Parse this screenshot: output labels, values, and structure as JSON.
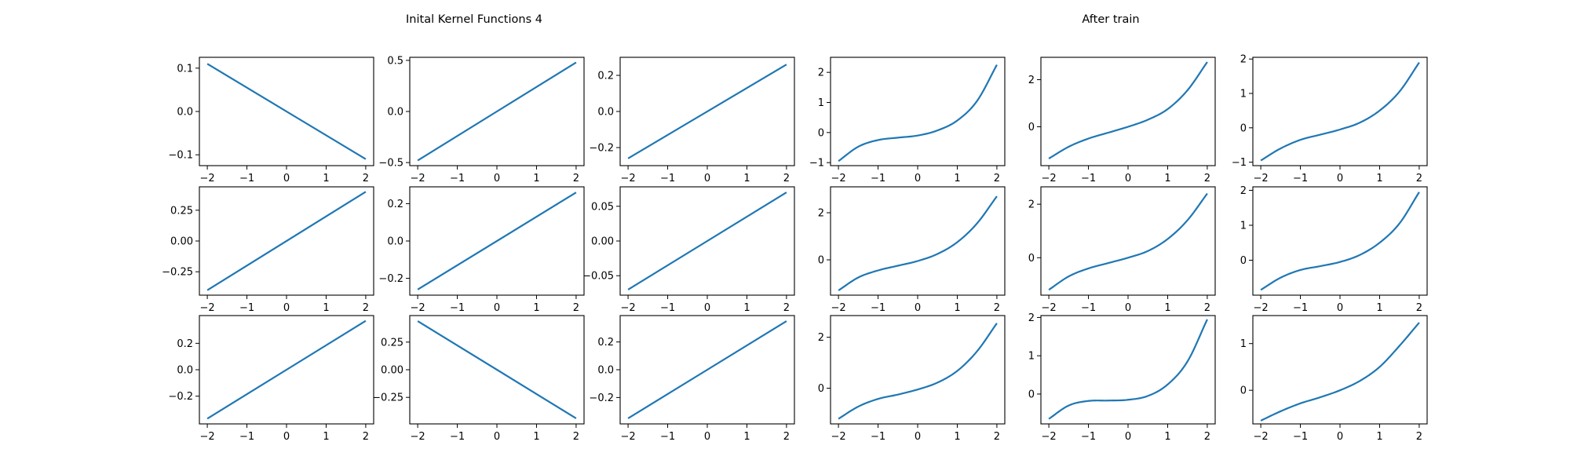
{
  "figure": {
    "titles": [
      {
        "text": "Inital Kernel Functions 4"
      },
      {
        "text": "After train"
      }
    ]
  },
  "chart_data": [
    {
      "type": "line",
      "row": 0,
      "col": 0,
      "x": [
        -2,
        2
      ],
      "series": [
        {
          "values": [
            0.11,
            -0.11
          ]
        }
      ],
      "xlim": [
        -2.2,
        2.2
      ],
      "ylim": [
        -0.125,
        0.125
      ],
      "xticks": [
        -2,
        -1,
        0,
        1,
        2
      ],
      "yticks": [
        -0.1,
        0.0,
        0.1
      ],
      "xtick_labels": [
        "−2",
        "−1",
        "0",
        "1",
        "2"
      ],
      "ytick_labels": [
        "−0.1",
        "0.0",
        "0.1"
      ]
    },
    {
      "type": "line",
      "row": 0,
      "col": 1,
      "x": [
        -2,
        2
      ],
      "series": [
        {
          "values": [
            -0.48,
            0.48
          ]
        }
      ],
      "xlim": [
        -2.2,
        2.2
      ],
      "ylim": [
        -0.53,
        0.53
      ],
      "xticks": [
        -2,
        -1,
        0,
        1,
        2
      ],
      "yticks": [
        -0.5,
        0.0,
        0.5
      ],
      "xtick_labels": [
        "−2",
        "−1",
        "0",
        "1",
        "2"
      ],
      "ytick_labels": [
        "−0.5",
        "0.0",
        "0.5"
      ]
    },
    {
      "type": "line",
      "row": 0,
      "col": 2,
      "x": [
        -2,
        2
      ],
      "series": [
        {
          "values": [
            -0.26,
            0.26
          ]
        }
      ],
      "xlim": [
        -2.2,
        2.2
      ],
      "ylim": [
        -0.3,
        0.3
      ],
      "xticks": [
        -2,
        -1,
        0,
        1,
        2
      ],
      "yticks": [
        -0.2,
        0.0,
        0.2
      ],
      "xtick_labels": [
        "−2",
        "−1",
        "0",
        "1",
        "2"
      ],
      "ytick_labels": [
        "−0.2",
        "0.0",
        "0.2"
      ]
    },
    {
      "type": "line",
      "row": 0,
      "col": 3,
      "x": [
        -2,
        -1.5,
        -1,
        -0.5,
        0,
        0.5,
        1,
        1.5,
        2
      ],
      "series": [
        {
          "values": [
            -0.95,
            -0.47,
            -0.25,
            -0.17,
            -0.1,
            0.07,
            0.4,
            1.05,
            2.25
          ]
        }
      ],
      "xlim": [
        -2.2,
        2.2
      ],
      "ylim": [
        -1.1,
        2.5
      ],
      "xticks": [
        -2,
        -1,
        0,
        1,
        2
      ],
      "yticks": [
        -1,
        0,
        1,
        2
      ],
      "xtick_labels": [
        "−2",
        "−1",
        "0",
        "1",
        "2"
      ],
      "ytick_labels": [
        "−1",
        "0",
        "1",
        "2"
      ]
    },
    {
      "type": "line",
      "row": 0,
      "col": 4,
      "x": [
        -2,
        -1.5,
        -1,
        -0.5,
        0,
        0.5,
        1,
        1.5,
        2
      ],
      "series": [
        {
          "values": [
            -1.35,
            -0.85,
            -0.5,
            -0.25,
            0,
            0.3,
            0.75,
            1.55,
            2.75
          ]
        }
      ],
      "xlim": [
        -2.2,
        2.2
      ],
      "ylim": [
        -1.65,
        2.95
      ],
      "xticks": [
        -2,
        -1,
        0,
        1,
        2
      ],
      "yticks": [
        0,
        2
      ],
      "xtick_labels": [
        "−2",
        "−1",
        "0",
        "1",
        "2"
      ],
      "ytick_labels": [
        "0",
        "2"
      ]
    },
    {
      "type": "line",
      "row": 0,
      "col": 5,
      "x": [
        -2,
        -1.5,
        -1,
        -0.5,
        0,
        0.5,
        1,
        1.5,
        2
      ],
      "series": [
        {
          "values": [
            -0.95,
            -0.6,
            -0.35,
            -0.2,
            -0.05,
            0.15,
            0.5,
            1.05,
            1.9
          ]
        }
      ],
      "xlim": [
        -2.2,
        2.2
      ],
      "ylim": [
        -1.1,
        2.05
      ],
      "xticks": [
        -2,
        -1,
        0,
        1,
        2
      ],
      "yticks": [
        -1,
        0,
        1,
        2
      ],
      "xtick_labels": [
        "−2",
        "−1",
        "0",
        "1",
        "2"
      ],
      "ytick_labels": [
        "−1",
        "0",
        "1",
        "2"
      ]
    },
    {
      "type": "line",
      "row": 1,
      "col": 0,
      "x": [
        -2,
        2
      ],
      "series": [
        {
          "values": [
            -0.4,
            0.4
          ]
        }
      ],
      "xlim": [
        -2.2,
        2.2
      ],
      "ylim": [
        -0.44,
        0.44
      ],
      "xticks": [
        -2,
        -1,
        0,
        1,
        2
      ],
      "yticks": [
        -0.25,
        0.0,
        0.25
      ],
      "xtick_labels": [
        "−2",
        "−1",
        "0",
        "1",
        "2"
      ],
      "ytick_labels": [
        "−0.25",
        "0.00",
        "0.25"
      ]
    },
    {
      "type": "line",
      "row": 1,
      "col": 1,
      "x": [
        -2,
        2
      ],
      "series": [
        {
          "values": [
            -0.26,
            0.26
          ]
        }
      ],
      "xlim": [
        -2.2,
        2.2
      ],
      "ylim": [
        -0.29,
        0.29
      ],
      "xticks": [
        -2,
        -1,
        0,
        1,
        2
      ],
      "yticks": [
        -0.2,
        0.0,
        0.2
      ],
      "xtick_labels": [
        "−2",
        "−1",
        "0",
        "1",
        "2"
      ],
      "ytick_labels": [
        "−0.2",
        "0.0",
        "0.2"
      ]
    },
    {
      "type": "line",
      "row": 1,
      "col": 2,
      "x": [
        -2,
        2
      ],
      "series": [
        {
          "values": [
            -0.07,
            0.07
          ]
        }
      ],
      "xlim": [
        -2.2,
        2.2
      ],
      "ylim": [
        -0.078,
        0.078
      ],
      "xticks": [
        -2,
        -1,
        0,
        1,
        2
      ],
      "yticks": [
        -0.05,
        0.0,
        0.05
      ],
      "xtick_labels": [
        "−2",
        "−1",
        "0",
        "1",
        "2"
      ],
      "ytick_labels": [
        "−0.05",
        "0.00",
        "0.05"
      ]
    },
    {
      "type": "line",
      "row": 1,
      "col": 3,
      "x": [
        -2,
        -1.5,
        -1,
        -0.5,
        0,
        0.5,
        1,
        1.5,
        2
      ],
      "series": [
        {
          "values": [
            -1.3,
            -0.75,
            -0.45,
            -0.25,
            -0.05,
            0.25,
            0.75,
            1.55,
            2.7
          ]
        }
      ],
      "xlim": [
        -2.2,
        2.2
      ],
      "ylim": [
        -1.5,
        3.1
      ],
      "xticks": [
        -2,
        -1,
        0,
        1,
        2
      ],
      "yticks": [
        0,
        2
      ],
      "xtick_labels": [
        "−2",
        "−1",
        "0",
        "1",
        "2"
      ],
      "ytick_labels": [
        "0",
        "2"
      ]
    },
    {
      "type": "line",
      "row": 1,
      "col": 4,
      "x": [
        -2,
        -1.5,
        -1,
        -0.5,
        0,
        0.5,
        1,
        1.5,
        2
      ],
      "series": [
        {
          "values": [
            -1.2,
            -0.7,
            -0.4,
            -0.2,
            0,
            0.25,
            0.7,
            1.4,
            2.4
          ]
        }
      ],
      "xlim": [
        -2.2,
        2.2
      ],
      "ylim": [
        -1.4,
        2.65
      ],
      "xticks": [
        -2,
        -1,
        0,
        1,
        2
      ],
      "yticks": [
        0,
        2
      ],
      "xtick_labels": [
        "−2",
        "−1",
        "0",
        "1",
        "2"
      ],
      "ytick_labels": [
        "0",
        "2"
      ]
    },
    {
      "type": "line",
      "row": 1,
      "col": 5,
      "x": [
        -2,
        -1.5,
        -1,
        -0.5,
        0,
        0.5,
        1,
        1.5,
        2
      ],
      "series": [
        {
          "values": [
            -0.85,
            -0.5,
            -0.28,
            -0.17,
            -0.05,
            0.15,
            0.5,
            1.05,
            1.95
          ]
        }
      ],
      "xlim": [
        -2.2,
        2.2
      ],
      "ylim": [
        -1.0,
        2.1
      ],
      "xticks": [
        -2,
        -1,
        0,
        1,
        2
      ],
      "yticks": [
        0,
        1,
        2
      ],
      "xtick_labels": [
        "−2",
        "−1",
        "0",
        "1",
        "2"
      ],
      "ytick_labels": [
        "0",
        "1",
        "2"
      ]
    },
    {
      "type": "line",
      "row": 2,
      "col": 0,
      "x": [
        -2,
        2
      ],
      "series": [
        {
          "values": [
            -0.37,
            0.37
          ]
        }
      ],
      "xlim": [
        -2.2,
        2.2
      ],
      "ylim": [
        -0.41,
        0.41
      ],
      "xticks": [
        -2,
        -1,
        0,
        1,
        2
      ],
      "yticks": [
        -0.2,
        0.0,
        0.2
      ],
      "xtick_labels": [
        "−2",
        "−1",
        "0",
        "1",
        "2"
      ],
      "ytick_labels": [
        "−0.2",
        "0.0",
        "0.2"
      ]
    },
    {
      "type": "line",
      "row": 2,
      "col": 1,
      "x": [
        -2,
        2
      ],
      "series": [
        {
          "values": [
            0.44,
            -0.44
          ]
        }
      ],
      "xlim": [
        -2.2,
        2.2
      ],
      "ylim": [
        -0.49,
        0.49
      ],
      "xticks": [
        -2,
        -1,
        0,
        1,
        2
      ],
      "yticks": [
        -0.25,
        0.0,
        0.25
      ],
      "xtick_labels": [
        "−2",
        "−1",
        "0",
        "1",
        "2"
      ],
      "ytick_labels": [
        "−0.25",
        "0.00",
        "0.25"
      ]
    },
    {
      "type": "line",
      "row": 2,
      "col": 2,
      "x": [
        -2,
        2
      ],
      "series": [
        {
          "values": [
            -0.35,
            0.35
          ]
        }
      ],
      "xlim": [
        -2.2,
        2.2
      ],
      "ylim": [
        -0.39,
        0.39
      ],
      "xticks": [
        -2,
        -1,
        0,
        1,
        2
      ],
      "yticks": [
        -0.2,
        0.0,
        0.2
      ],
      "xtick_labels": [
        "−2",
        "−1",
        "0",
        "1",
        "2"
      ],
      "ytick_labels": [
        "−0.2",
        "0.0",
        "0.2"
      ]
    },
    {
      "type": "line",
      "row": 2,
      "col": 3,
      "x": [
        -2,
        -1.5,
        -1,
        -0.5,
        0,
        0.5,
        1,
        1.5,
        2
      ],
      "series": [
        {
          "values": [
            -1.2,
            -0.72,
            -0.42,
            -0.25,
            -0.05,
            0.22,
            0.68,
            1.45,
            2.55
          ]
        }
      ],
      "xlim": [
        -2.2,
        2.2
      ],
      "ylim": [
        -1.4,
        2.85
      ],
      "xticks": [
        -2,
        -1,
        0,
        1,
        2
      ],
      "yticks": [
        0,
        2
      ],
      "xtick_labels": [
        "−2",
        "−1",
        "0",
        "1",
        "2"
      ],
      "ytick_labels": [
        "0",
        "2"
      ]
    },
    {
      "type": "line",
      "row": 2,
      "col": 4,
      "x": [
        -2,
        -1.5,
        -1,
        -0.5,
        0,
        0.5,
        1,
        1.5,
        2
      ],
      "series": [
        {
          "values": [
            -0.65,
            -0.3,
            -0.18,
            -0.17,
            -0.15,
            -0.05,
            0.25,
            0.85,
            1.95
          ]
        }
      ],
      "xlim": [
        -2.2,
        2.2
      ],
      "ylim": [
        -0.78,
        2.05
      ],
      "xticks": [
        -2,
        -1,
        0,
        1,
        2
      ],
      "yticks": [
        0,
        1,
        2
      ],
      "xtick_labels": [
        "−2",
        "−1",
        "0",
        "1",
        "2"
      ],
      "ytick_labels": [
        "0",
        "1",
        "2"
      ]
    },
    {
      "type": "line",
      "row": 2,
      "col": 5,
      "x": [
        -2,
        -1.5,
        -1,
        -0.5,
        0,
        0.5,
        1,
        1.5,
        2
      ],
      "series": [
        {
          "values": [
            -0.65,
            -0.45,
            -0.28,
            -0.15,
            0,
            0.2,
            0.5,
            0.95,
            1.45
          ]
        }
      ],
      "xlim": [
        -2.2,
        2.2
      ],
      "ylim": [
        -0.72,
        1.6
      ],
      "xticks": [
        -2,
        -1,
        0,
        1,
        2
      ],
      "yticks": [
        0,
        1
      ],
      "xtick_labels": [
        "−2",
        "−1",
        "0",
        "1",
        "2"
      ],
      "ytick_labels": [
        "0",
        "1"
      ]
    }
  ]
}
